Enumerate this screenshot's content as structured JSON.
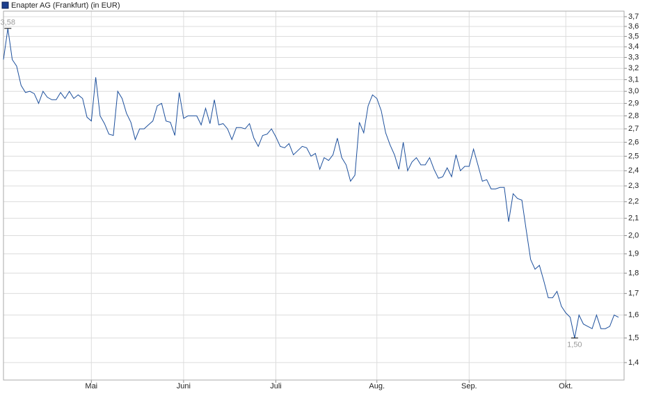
{
  "chart_data": {
    "type": "line",
    "ylog": true,
    "ylim": [
      1.333,
      3.758
    ],
    "yticks": [
      {
        "value": 3.7,
        "label": "3,7"
      },
      {
        "value": 3.6,
        "label": "3,6"
      },
      {
        "value": 3.5,
        "label": "3,5"
      },
      {
        "value": 3.4,
        "label": "3,4"
      },
      {
        "value": 3.3,
        "label": "3,3"
      },
      {
        "value": 3.2,
        "label": "3,2"
      },
      {
        "value": 3.1,
        "label": "3,1"
      },
      {
        "value": 3.0,
        "label": "3,0"
      },
      {
        "value": 2.9,
        "label": "2,9"
      },
      {
        "value": 2.8,
        "label": "2,8"
      },
      {
        "value": 2.7,
        "label": "2,7"
      },
      {
        "value": 2.6,
        "label": "2,6"
      },
      {
        "value": 2.5,
        "label": "2,5"
      },
      {
        "value": 2.4,
        "label": "2,4"
      },
      {
        "value": 2.3,
        "label": "2,3"
      },
      {
        "value": 2.2,
        "label": "2,2"
      },
      {
        "value": 2.1,
        "label": "2,1"
      },
      {
        "value": 2.0,
        "label": "2,0"
      },
      {
        "value": 1.9,
        "label": "1,9"
      },
      {
        "value": 1.8,
        "label": "1,8"
      },
      {
        "value": 1.7,
        "label": "1,7"
      },
      {
        "value": 1.6,
        "label": "1,6"
      },
      {
        "value": 1.5,
        "label": "1,5"
      },
      {
        "value": 1.4,
        "label": "1,4"
      }
    ],
    "grid": true,
    "categories": [
      null,
      null,
      null,
      null,
      null,
      null,
      null,
      null,
      null,
      null,
      null,
      null,
      null,
      null,
      null,
      null,
      null,
      null,
      null,
      null,
      "Mai",
      null,
      null,
      null,
      null,
      null,
      null,
      null,
      null,
      null,
      null,
      null,
      null,
      null,
      null,
      null,
      null,
      null,
      null,
      null,
      null,
      "Juni",
      null,
      null,
      null,
      null,
      null,
      null,
      null,
      null,
      null,
      null,
      null,
      null,
      null,
      null,
      null,
      null,
      null,
      null,
      null,
      null,
      "Juli",
      null,
      null,
      null,
      null,
      null,
      null,
      null,
      null,
      null,
      null,
      null,
      null,
      null,
      null,
      null,
      null,
      null,
      null,
      null,
      null,
      null,
      null,
      "Aug.",
      null,
      null,
      null,
      null,
      null,
      null,
      null,
      null,
      null,
      null,
      null,
      null,
      null,
      null,
      null,
      null,
      null,
      null,
      null,
      null,
      "Sep.",
      null,
      null,
      null,
      null,
      null,
      null,
      null,
      null,
      null,
      null,
      null,
      null,
      null,
      null,
      null,
      null,
      null,
      null,
      null,
      null,
      null,
      "Okt.",
      null,
      null,
      null,
      null,
      null,
      null,
      null,
      null,
      null,
      null,
      null,
      null
    ],
    "series": [
      {
        "name": "Enapter AG (Frankfurt) (in EUR)",
        "color": "#1c4f9c",
        "values": [
          3.28,
          3.58,
          3.28,
          3.22,
          3.05,
          2.99,
          3.0,
          2.98,
          2.9,
          3.0,
          2.95,
          2.93,
          2.93,
          2.99,
          2.94,
          3.0,
          2.94,
          2.97,
          2.94,
          2.79,
          2.76,
          3.12,
          2.8,
          2.74,
          2.66,
          2.65,
          3.0,
          2.94,
          2.82,
          2.75,
          2.62,
          2.7,
          2.7,
          2.73,
          2.76,
          2.88,
          2.9,
          2.76,
          2.75,
          2.65,
          2.99,
          2.78,
          2.8,
          2.8,
          2.8,
          2.73,
          2.86,
          2.74,
          2.93,
          2.73,
          2.74,
          2.7,
          2.62,
          2.71,
          2.71,
          2.7,
          2.74,
          2.63,
          2.57,
          2.65,
          2.66,
          2.7,
          2.64,
          2.57,
          2.56,
          2.59,
          2.51,
          2.54,
          2.57,
          2.56,
          2.5,
          2.52,
          2.41,
          2.49,
          2.47,
          2.51,
          2.63,
          2.49,
          2.44,
          2.33,
          2.37,
          2.75,
          2.67,
          2.88,
          2.97,
          2.94,
          2.84,
          2.67,
          2.58,
          2.51,
          2.41,
          2.6,
          2.4,
          2.46,
          2.49,
          2.44,
          2.44,
          2.49,
          2.41,
          2.35,
          2.36,
          2.42,
          2.36,
          2.51,
          2.4,
          2.43,
          2.43,
          2.55,
          2.44,
          2.33,
          2.34,
          2.28,
          2.28,
          2.29,
          2.29,
          2.08,
          2.25,
          2.22,
          2.21,
          2.03,
          1.87,
          1.82,
          1.84,
          1.76,
          1.68,
          1.68,
          1.71,
          1.64,
          1.61,
          1.59,
          1.5,
          1.6,
          1.56,
          1.55,
          1.54,
          1.6,
          1.54,
          1.54,
          1.55,
          1.6,
          1.59
        ]
      }
    ],
    "annotations": [
      {
        "text": "3,58",
        "value": 3.58
      },
      {
        "text": "1,50",
        "value": 1.5
      }
    ]
  }
}
